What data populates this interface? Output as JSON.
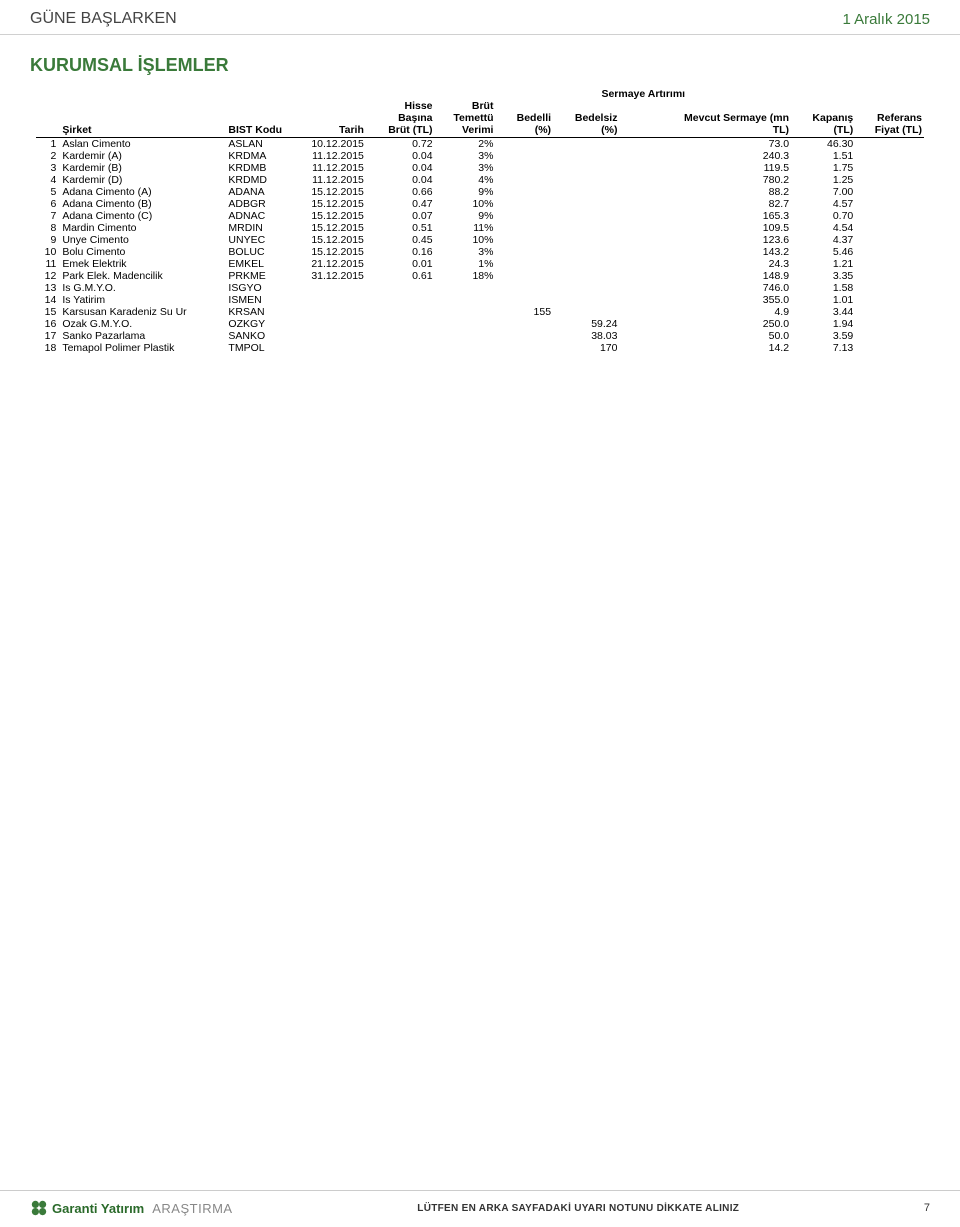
{
  "header": {
    "title_left": "GÜNE BAŞLARKEN",
    "title_right": "1 Aralık 2015"
  },
  "section_title": "KURUMSAL İŞLEMLER",
  "table": {
    "super_header": "Sermaye Artırımı",
    "columns": {
      "sirket": "Şirket",
      "bist": "BIST Kodu",
      "tarih": "Tarih",
      "brut_l1": "Hisse",
      "brut_l2": "Başına",
      "brut_l3": "Brüt (TL)",
      "verim_l1": "Brüt",
      "verim_l2": "Temettü",
      "verim_l3": "Verimi",
      "bedelli_l1": "Bedelli",
      "bedelli_l2": "(%)",
      "bedelsiz_l1": "Bedelsiz",
      "bedelsiz_l2": "(%)",
      "sermaye_l1": "Mevcut Sermaye (mn",
      "sermaye_l2": "TL)",
      "kapanis_l1": "Kapanış",
      "kapanis_l2": "(TL)",
      "referans_l1": "Referans",
      "referans_l2": "Fiyat (TL)"
    },
    "rows": [
      {
        "idx": "1",
        "sirket": "Aslan Cimento",
        "bist": "ASLAN",
        "tarih": "10.12.2015",
        "brut": "0.72",
        "verim": "2%",
        "bedelli": "",
        "bedelsiz": "",
        "sermaye": "73.0",
        "kapanis": "46.30",
        "ref": ""
      },
      {
        "idx": "2",
        "sirket": "Kardemir (A)",
        "bist": "KRDMA",
        "tarih": "11.12.2015",
        "brut": "0.04",
        "verim": "3%",
        "bedelli": "",
        "bedelsiz": "",
        "sermaye": "240.3",
        "kapanis": "1.51",
        "ref": ""
      },
      {
        "idx": "3",
        "sirket": "Kardemir (B)",
        "bist": "KRDMB",
        "tarih": "11.12.2015",
        "brut": "0.04",
        "verim": "3%",
        "bedelli": "",
        "bedelsiz": "",
        "sermaye": "119.5",
        "kapanis": "1.75",
        "ref": ""
      },
      {
        "idx": "4",
        "sirket": "Kardemir (D)",
        "bist": "KRDMD",
        "tarih": "11.12.2015",
        "brut": "0.04",
        "verim": "4%",
        "bedelli": "",
        "bedelsiz": "",
        "sermaye": "780.2",
        "kapanis": "1.25",
        "ref": ""
      },
      {
        "idx": "5",
        "sirket": "Adana Cimento (A)",
        "bist": "ADANA",
        "tarih": "15.12.2015",
        "brut": "0.66",
        "verim": "9%",
        "bedelli": "",
        "bedelsiz": "",
        "sermaye": "88.2",
        "kapanis": "7.00",
        "ref": ""
      },
      {
        "idx": "6",
        "sirket": "Adana Cimento (B)",
        "bist": "ADBGR",
        "tarih": "15.12.2015",
        "brut": "0.47",
        "verim": "10%",
        "bedelli": "",
        "bedelsiz": "",
        "sermaye": "82.7",
        "kapanis": "4.57",
        "ref": ""
      },
      {
        "idx": "7",
        "sirket": "Adana Cimento (C)",
        "bist": "ADNAC",
        "tarih": "15.12.2015",
        "brut": "0.07",
        "verim": "9%",
        "bedelli": "",
        "bedelsiz": "",
        "sermaye": "165.3",
        "kapanis": "0.70",
        "ref": ""
      },
      {
        "idx": "8",
        "sirket": "Mardin Cimento",
        "bist": "MRDIN",
        "tarih": "15.12.2015",
        "brut": "0.51",
        "verim": "11%",
        "bedelli": "",
        "bedelsiz": "",
        "sermaye": "109.5",
        "kapanis": "4.54",
        "ref": ""
      },
      {
        "idx": "9",
        "sirket": "Unye Cimento",
        "bist": "UNYEC",
        "tarih": "15.12.2015",
        "brut": "0.45",
        "verim": "10%",
        "bedelli": "",
        "bedelsiz": "",
        "sermaye": "123.6",
        "kapanis": "4.37",
        "ref": ""
      },
      {
        "idx": "10",
        "sirket": "Bolu Cimento",
        "bist": "BOLUC",
        "tarih": "15.12.2015",
        "brut": "0.16",
        "verim": "3%",
        "bedelli": "",
        "bedelsiz": "",
        "sermaye": "143.2",
        "kapanis": "5.46",
        "ref": ""
      },
      {
        "idx": "11",
        "sirket": "Emek Elektrik",
        "bist": "EMKEL",
        "tarih": "21.12.2015",
        "brut": "0.01",
        "verim": "1%",
        "bedelli": "",
        "bedelsiz": "",
        "sermaye": "24.3",
        "kapanis": "1.21",
        "ref": ""
      },
      {
        "idx": "12",
        "sirket": "Park Elek. Madencilik",
        "bist": "PRKME",
        "tarih": "31.12.2015",
        "brut": "0.61",
        "verim": "18%",
        "bedelli": "",
        "bedelsiz": "",
        "sermaye": "148.9",
        "kapanis": "3.35",
        "ref": ""
      },
      {
        "idx": "13",
        "sirket": "Is G.M.Y.O.",
        "bist": "ISGYO",
        "tarih": "",
        "brut": "",
        "verim": "",
        "bedelli": "",
        "bedelsiz": "",
        "sermaye": "746.0",
        "kapanis": "1.58",
        "ref": ""
      },
      {
        "idx": "14",
        "sirket": "Is Yatirim",
        "bist": "ISMEN",
        "tarih": "",
        "brut": "",
        "verim": "",
        "bedelli": "",
        "bedelsiz": "",
        "sermaye": "355.0",
        "kapanis": "1.01",
        "ref": ""
      },
      {
        "idx": "15",
        "sirket": "Karsusan Karadeniz Su Ur",
        "bist": "KRSAN",
        "tarih": "",
        "brut": "",
        "verim": "",
        "bedelli": "155",
        "bedelsiz": "",
        "sermaye": "4.9",
        "kapanis": "3.44",
        "ref": ""
      },
      {
        "idx": "16",
        "sirket": "Ozak G.M.Y.O.",
        "bist": "OZKGY",
        "tarih": "",
        "brut": "",
        "verim": "",
        "bedelli": "",
        "bedelsiz": "59.24",
        "sermaye": "250.0",
        "kapanis": "1.94",
        "ref": ""
      },
      {
        "idx": "17",
        "sirket": "Sanko Pazarlama",
        "bist": "SANKO",
        "tarih": "",
        "brut": "",
        "verim": "",
        "bedelli": "",
        "bedelsiz": "38.03",
        "sermaye": "50.0",
        "kapanis": "3.59",
        "ref": ""
      },
      {
        "idx": "18",
        "sirket": "Temapol Polimer Plastik",
        "bist": "TMPOL",
        "tarih": "",
        "brut": "",
        "verim": "",
        "bedelli": "",
        "bedelsiz": "170",
        "sermaye": "14.2",
        "kapanis": "7.13",
        "ref": ""
      }
    ]
  },
  "footer": {
    "logo_text": "Garanti Yatırım",
    "arastirma": "ARAŞTIRMA",
    "warning": "LÜTFEN EN ARKA SAYFADAKİ UYARI NOTUNU DİKKATE ALINIZ",
    "page": "7"
  },
  "colors": {
    "accent_green": "#3a7a3a",
    "text": "#000000",
    "muted": "#888888",
    "rule": "#d0d0d0"
  }
}
